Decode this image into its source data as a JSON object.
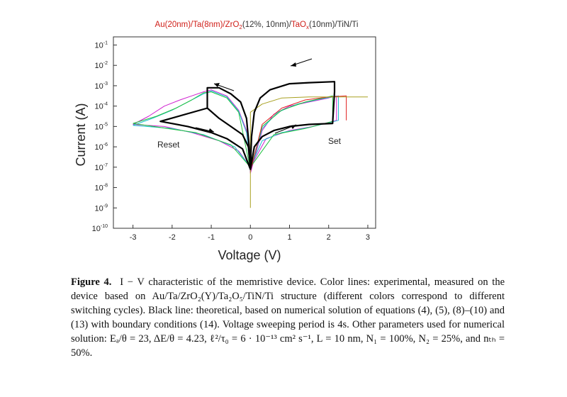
{
  "chart_data": {
    "type": "line",
    "title_parts": [
      {
        "text": "Au(20nm)/Ta(8nm)/",
        "color": "#d0201a"
      },
      {
        "text": "ZrO",
        "color": "#d0201a"
      },
      {
        "text": "2",
        "color": "#d0201a",
        "sub": true
      },
      {
        "text": "(12%, 10nm)/",
        "color": "#333333"
      },
      {
        "text": "TaO",
        "color": "#d0201a"
      },
      {
        "text": "x",
        "color": "#d0201a",
        "sub": true
      },
      {
        "text": "(10nm)/TiN/Ti",
        "color": "#333333"
      }
    ],
    "xlabel": "Voltage (V)",
    "ylabel": "Current (A)",
    "xlim": [
      -3.5,
      3.2
    ],
    "ylim_exp": [
      -10,
      -0.6
    ],
    "x_ticks": [
      "-3",
      "-2",
      "-1",
      "0",
      "1",
      "2",
      "3"
    ],
    "x_tick_values": [
      -3,
      -2,
      -1,
      0,
      1,
      2,
      3
    ],
    "y_tick_exponents": [
      -1,
      -2,
      -3,
      -4,
      -5,
      -6,
      -7,
      -8,
      -9,
      -10
    ],
    "y_tick_base": "10",
    "annotations": {
      "reset": "Reset",
      "set": "Set"
    },
    "series": [
      {
        "color": "#000000",
        "points": [
          [
            0,
            -7.1
          ],
          [
            0.1,
            -6.0
          ],
          [
            0.3,
            -5.5
          ],
          [
            0.6,
            -5.2
          ],
          [
            1,
            -5.0
          ],
          [
            1.5,
            -4.9
          ],
          [
            2.1,
            -4.85
          ],
          [
            2.15,
            -3.3
          ],
          [
            2.15,
            -2.8
          ],
          [
            1.5,
            -2.85
          ],
          [
            1.0,
            -2.9
          ],
          [
            0.5,
            -3.2
          ],
          [
            0.25,
            -3.6
          ],
          [
            0.1,
            -4.3
          ],
          [
            0.03,
            -5.5
          ],
          [
            0,
            -7.1
          ],
          [
            -0.05,
            -6.0
          ],
          [
            -0.2,
            -5.4
          ],
          [
            -0.5,
            -5.0
          ],
          [
            -0.8,
            -4.6
          ],
          [
            -1.1,
            -4.1
          ],
          [
            -1.1,
            -3.1
          ],
          [
            -0.8,
            -3.1
          ],
          [
            -0.5,
            -3.4
          ],
          [
            -0.25,
            -3.8
          ],
          [
            -0.1,
            -4.6
          ],
          [
            -0.03,
            -6.0
          ],
          [
            0,
            -7.1
          ],
          [
            -0.2,
            -6.1
          ],
          [
            -0.6,
            -5.6
          ],
          [
            -1.0,
            -5.3
          ],
          [
            -1.6,
            -5.0
          ],
          [
            -2.3,
            -4.75
          ],
          [
            -2.3,
            -4.75
          ],
          [
            -1.1,
            -4.1
          ]
        ]
      },
      {
        "color": "#d020d0",
        "points": [
          [
            -3,
            -4.9
          ],
          [
            -2.6,
            -4.5
          ],
          [
            -2.2,
            -4.0
          ],
          [
            -1.8,
            -3.7
          ],
          [
            -1.5,
            -3.5
          ],
          [
            -1.2,
            -3.3
          ],
          [
            -1.0,
            -3.2
          ],
          [
            -0.6,
            -3.5
          ],
          [
            -0.3,
            -4.2
          ],
          [
            -0.1,
            -5.2
          ],
          [
            0,
            -7.3
          ],
          [
            0.3,
            -5.2
          ],
          [
            0.6,
            -4.4
          ],
          [
            1.0,
            -4.0
          ],
          [
            1.5,
            -3.8
          ],
          [
            2.0,
            -3.6
          ],
          [
            2.2,
            -3.5
          ],
          [
            2.2,
            -4.7
          ],
          [
            1.6,
            -5.0
          ],
          [
            1.0,
            -5.2
          ],
          [
            0.4,
            -5.6
          ],
          [
            0,
            -7.0
          ],
          [
            -0.3,
            -6.2
          ],
          [
            -0.8,
            -5.7
          ],
          [
            -1.5,
            -5.3
          ],
          [
            -2.2,
            -5.0
          ],
          [
            -3,
            -4.9
          ]
        ]
      },
      {
        "color": "#20c0d0",
        "points": [
          [
            -3,
            -4.95
          ],
          [
            -2.5,
            -4.6
          ],
          [
            -2.0,
            -4.2
          ],
          [
            -1.6,
            -3.8
          ],
          [
            -1.2,
            -3.4
          ],
          [
            -1.0,
            -3.25
          ],
          [
            -0.6,
            -3.55
          ],
          [
            -0.3,
            -4.25
          ],
          [
            -0.1,
            -5.3
          ],
          [
            0,
            -7.2
          ],
          [
            0.3,
            -5.1
          ],
          [
            0.7,
            -4.3
          ],
          [
            1.2,
            -3.9
          ],
          [
            1.8,
            -3.65
          ],
          [
            2.25,
            -3.5
          ],
          [
            2.25,
            -4.7
          ],
          [
            1.5,
            -5.05
          ],
          [
            0.8,
            -5.3
          ],
          [
            0.3,
            -5.7
          ],
          [
            0,
            -7.0
          ],
          [
            -0.4,
            -6.0
          ],
          [
            -1.2,
            -5.4
          ],
          [
            -2.0,
            -5.1
          ],
          [
            -3,
            -4.95
          ]
        ]
      },
      {
        "color": "#20c040",
        "points": [
          [
            -3,
            -4.85
          ],
          [
            -2.4,
            -4.5
          ],
          [
            -1.9,
            -4.1
          ],
          [
            -1.5,
            -3.7
          ],
          [
            -1.2,
            -3.35
          ],
          [
            -1.0,
            -3.3
          ],
          [
            -0.6,
            -3.6
          ],
          [
            -0.3,
            -4.3
          ],
          [
            0,
            -7.1
          ],
          [
            0.3,
            -5.0
          ],
          [
            0.8,
            -4.2
          ],
          [
            1.4,
            -3.8
          ],
          [
            2.1,
            -3.5
          ],
          [
            2.1,
            -4.75
          ],
          [
            1.4,
            -5.1
          ],
          [
            0.6,
            -5.4
          ],
          [
            0,
            -7.0
          ],
          [
            -0.5,
            -5.9
          ],
          [
            -1.4,
            -5.3
          ],
          [
            -3,
            -4.85
          ]
        ]
      },
      {
        "color": "#a8a020",
        "points": [
          [
            0,
            -9.0
          ],
          [
            0,
            -4.3
          ],
          [
            0.3,
            -3.9
          ],
          [
            0.8,
            -3.6
          ],
          [
            1.5,
            -3.55
          ],
          [
            2.4,
            -3.55
          ],
          [
            3.0,
            -3.55
          ]
        ]
      },
      {
        "color": "#e02020",
        "points": [
          [
            2.45,
            -4.7
          ],
          [
            2.45,
            -3.5
          ],
          [
            2.0,
            -3.55
          ],
          [
            1.4,
            -3.7
          ],
          [
            0.8,
            -4.1
          ],
          [
            0.3,
            -4.9
          ],
          [
            0,
            -7.2
          ]
        ]
      }
    ]
  },
  "caption": {
    "label": "Figure 4.",
    "text": "I − V characteristic of the memristive device. Color lines: experimental, measured on the device based on Au/Ta/ZrO₂(Y)/Ta₂O₅/TiN/Ti structure (different colors correspond to different switching cycles). Black line: theoretical, based on numerical solution of equations (4), (5), (8)–(10) and (13) with boundary conditions (14). Voltage sweeping period is 4s. Other parameters used for numerical solution: Eₐ/θ = 23, ΔE/θ = 4.23, ℓ²/τ₀ = 6 · 10⁻¹³ cm² s⁻¹, L = 10 nm, N₁ = 100%, N₂ = 25%, and nₜₕ = 50%."
  }
}
